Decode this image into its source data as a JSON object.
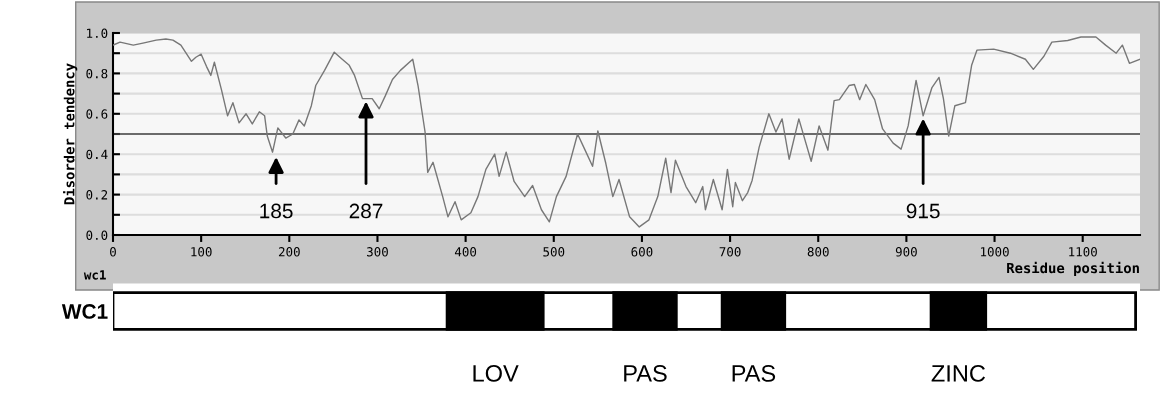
{
  "chart_data": [
    {
      "type": "line",
      "xlabel": "Residue position",
      "ylabel": "Disorder tendency",
      "x": [
        0,
        8,
        23,
        34,
        49,
        60,
        68,
        77,
        89,
        94,
        100,
        106,
        111,
        115,
        123,
        130,
        136,
        143,
        151,
        158,
        166,
        172,
        175,
        181,
        187,
        196,
        204,
        211,
        217,
        225,
        230,
        240,
        251,
        260,
        268,
        274,
        283,
        294,
        302,
        309,
        317,
        326,
        340,
        346,
        354,
        357,
        363,
        374,
        380,
        388,
        395,
        406,
        414,
        423,
        433,
        438,
        446,
        455,
        467,
        476,
        486,
        495,
        503,
        514,
        527,
        535,
        544,
        550,
        559,
        567,
        574,
        586,
        597,
        608,
        618,
        627,
        633,
        638,
        650,
        661,
        669,
        672,
        681,
        691,
        697,
        703,
        706,
        714,
        720,
        725,
        733,
        744,
        752,
        759,
        767,
        778,
        792,
        801,
        811,
        818,
        824,
        835,
        841,
        847,
        854,
        864,
        873,
        885,
        894,
        902,
        911,
        919,
        929,
        937,
        942,
        948,
        955,
        967,
        974,
        980,
        999,
        1018,
        1035,
        1044,
        1056,
        1065,
        1083,
        1098,
        1115,
        1126,
        1138,
        1145,
        1153,
        1165
      ],
      "series": [
        {
          "color": "#777777",
          "values": [
            0.94,
            0.955,
            0.94,
            0.95,
            0.965,
            0.97,
            0.965,
            0.94,
            0.86,
            0.88,
            0.895,
            0.835,
            0.79,
            0.855,
            0.72,
            0.59,
            0.655,
            0.555,
            0.6,
            0.55,
            0.61,
            0.59,
            0.49,
            0.41,
            0.53,
            0.48,
            0.5,
            0.57,
            0.54,
            0.64,
            0.74,
            0.815,
            0.905,
            0.87,
            0.84,
            0.79,
            0.675,
            0.675,
            0.625,
            0.69,
            0.77,
            0.815,
            0.87,
            0.74,
            0.51,
            0.31,
            0.36,
            0.19,
            0.09,
            0.165,
            0.075,
            0.11,
            0.19,
            0.325,
            0.4,
            0.29,
            0.41,
            0.265,
            0.19,
            0.245,
            0.125,
            0.065,
            0.19,
            0.29,
            0.5,
            0.425,
            0.34,
            0.515,
            0.355,
            0.19,
            0.275,
            0.09,
            0.04,
            0.075,
            0.19,
            0.38,
            0.21,
            0.37,
            0.24,
            0.16,
            0.24,
            0.125,
            0.275,
            0.125,
            0.325,
            0.14,
            0.26,
            0.17,
            0.21,
            0.27,
            0.435,
            0.6,
            0.51,
            0.575,
            0.375,
            0.575,
            0.365,
            0.54,
            0.42,
            0.665,
            0.67,
            0.74,
            0.745,
            0.67,
            0.745,
            0.67,
            0.525,
            0.455,
            0.425,
            0.54,
            0.765,
            0.59,
            0.73,
            0.78,
            0.675,
            0.49,
            0.64,
            0.655,
            0.84,
            0.915,
            0.92,
            0.9,
            0.87,
            0.82,
            0.885,
            0.955,
            0.963,
            0.98,
            0.98,
            0.94,
            0.9,
            0.94,
            0.85,
            0.87
          ]
        }
      ],
      "xlim": [
        0,
        1165
      ],
      "xticks": [
        0,
        100,
        200,
        300,
        400,
        500,
        600,
        700,
        800,
        900,
        1000,
        1100
      ],
      "ylim": [
        0,
        1.0
      ],
      "yticks": [
        {
          "value": 0,
          "label": "0.0"
        },
        {
          "value": 0.1,
          "label": null
        },
        {
          "value": 0.2,
          "label": "0.2"
        },
        {
          "value": 0.3,
          "label": null
        },
        {
          "value": 0.4,
          "label": "0.4"
        },
        {
          "value": 0.5,
          "label": null
        },
        {
          "value": 0.6,
          "label": "0.6"
        },
        {
          "value": 0.7,
          "label": null
        },
        {
          "value": 0.8,
          "label": "0.8"
        },
        {
          "value": 0.9,
          "label": null
        },
        {
          "value": 1.0,
          "label": "1.0"
        }
      ],
      "grid": "y",
      "ref_lines": [
        {
          "axis": "y",
          "value": 0.5,
          "color": "#444444"
        }
      ],
      "annotations": [
        {
          "text": "185",
          "x": 185,
          "y": 0.4
        },
        {
          "text": "287",
          "x": 287,
          "y": 0.675
        },
        {
          "text": "915",
          "x": 919,
          "y": 0.59
        },
        "wc1"
      ]
    },
    {
      "type": "bar",
      "orientation": "horizontal",
      "categories": [
        "WC1"
      ],
      "xlim": [
        0,
        1165
      ],
      "tick_labels": "y",
      "series": [
        {
          "color": "#ffffff",
          "values": [
            1160
          ],
          "base": [
            0
          ]
        },
        {
          "name": "LOV",
          "color": "#000000",
          "values": [
            109
          ],
          "base": [
            379
          ]
        },
        {
          "name": "PAS",
          "color": "#000000",
          "values": [
            71
          ],
          "base": [
            568
          ]
        },
        {
          "name": "PAS",
          "color": "#000000",
          "values": [
            71
          ],
          "base": [
            691
          ]
        },
        {
          "name": "ZINC",
          "color": "#000000",
          "values": [
            62
          ],
          "base": [
            928
          ]
        }
      ]
    }
  ]
}
